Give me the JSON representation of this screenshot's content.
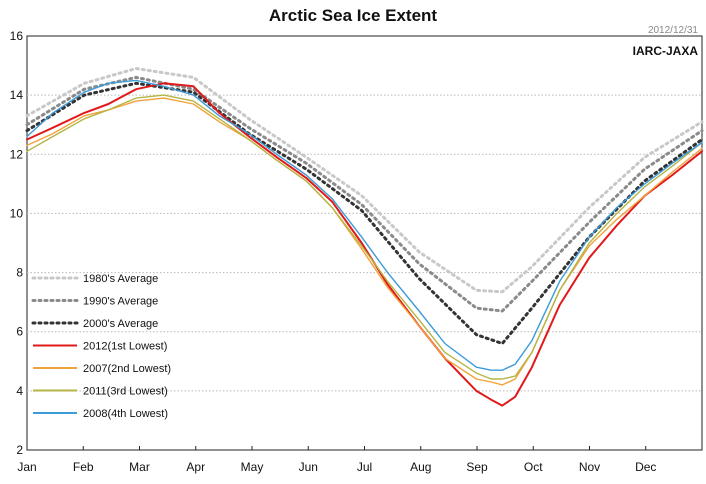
{
  "chart_data": {
    "type": "line",
    "title": "Arctic Sea Ice Extent",
    "date_stamp": "2012/12/31",
    "source": "IARC-JAXA",
    "xlabel": "",
    "ylabel": "",
    "x_ticks": [
      "Jan",
      "Feb",
      "Mar",
      "Apr",
      "May",
      "Jun",
      "Jul",
      "Aug",
      "Sep",
      "Oct",
      "Nov",
      "Dec"
    ],
    "ylim": [
      2,
      16
    ],
    "y_ticks": [
      2,
      4,
      6,
      8,
      10,
      12,
      14,
      16
    ],
    "xlim": [
      1,
      366
    ],
    "grid": "horizontal",
    "legend_position": "left",
    "series": [
      {
        "name": "1980's Average",
        "color": "#c8c8c8",
        "style": "dotted",
        "x": [
          1,
          32,
          60,
          91,
          121,
          152,
          182,
          213,
          244,
          258,
          274,
          305,
          335,
          366
        ],
        "y": [
          13.3,
          14.4,
          14.9,
          14.6,
          13.2,
          11.9,
          10.6,
          8.7,
          7.4,
          7.35,
          8.2,
          10.2,
          11.9,
          13.1
        ]
      },
      {
        "name": "1990's Average",
        "color": "#8a8a8a",
        "style": "dotted",
        "x": [
          1,
          32,
          60,
          91,
          121,
          152,
          182,
          213,
          244,
          258,
          274,
          305,
          335,
          366
        ],
        "y": [
          13.0,
          14.2,
          14.6,
          14.2,
          12.9,
          11.7,
          10.3,
          8.3,
          6.8,
          6.7,
          7.7,
          9.7,
          11.5,
          12.8
        ]
      },
      {
        "name": "2000's Average",
        "color": "#333333",
        "style": "dotted",
        "x": [
          1,
          32,
          60,
          91,
          121,
          152,
          182,
          213,
          244,
          258,
          274,
          305,
          335,
          366
        ],
        "y": [
          12.8,
          14.0,
          14.4,
          14.1,
          12.7,
          11.5,
          10.1,
          7.8,
          5.9,
          5.6,
          6.8,
          9.2,
          11.1,
          12.5
        ]
      },
      {
        "name": "2012(1st Lowest)",
        "color": "#e0191b",
        "style": "solid",
        "x": [
          1,
          15,
          32,
          45,
          60,
          75,
          91,
          105,
          121,
          136,
          152,
          166,
          182,
          196,
          213,
          227,
          244,
          252,
          258,
          265,
          274,
          289,
          305,
          320,
          335,
          350,
          366
        ],
        "y": [
          12.5,
          12.9,
          13.4,
          13.7,
          14.2,
          14.4,
          14.3,
          13.4,
          12.6,
          11.9,
          11.2,
          10.4,
          9.0,
          7.6,
          6.2,
          5.1,
          4.0,
          3.7,
          3.5,
          3.8,
          4.8,
          6.9,
          8.5,
          9.6,
          10.6,
          11.3,
          12.1
        ]
      },
      {
        "name": "2007(2nd Lowest)",
        "color": "#f2a23a",
        "style": "solid",
        "x": [
          1,
          15,
          32,
          45,
          60,
          75,
          91,
          105,
          121,
          136,
          152,
          166,
          182,
          196,
          213,
          227,
          244,
          252,
          258,
          265,
          274,
          289,
          305,
          320,
          335,
          350,
          366
        ],
        "y": [
          12.3,
          12.7,
          13.3,
          13.5,
          13.8,
          13.9,
          13.7,
          13.1,
          12.5,
          11.8,
          11.1,
          10.2,
          8.8,
          7.5,
          6.2,
          5.1,
          4.4,
          4.3,
          4.2,
          4.4,
          5.3,
          7.4,
          8.9,
          9.8,
          10.6,
          11.4,
          12.2
        ]
      },
      {
        "name": "2011(3rd Lowest)",
        "color": "#b5b545",
        "style": "solid",
        "x": [
          1,
          15,
          32,
          45,
          60,
          75,
          91,
          105,
          121,
          136,
          152,
          166,
          182,
          196,
          213,
          227,
          244,
          252,
          258,
          265,
          274,
          289,
          305,
          320,
          335,
          350,
          366
        ],
        "y": [
          12.1,
          12.6,
          13.2,
          13.5,
          13.9,
          14.0,
          13.8,
          13.2,
          12.5,
          11.8,
          11.1,
          10.2,
          8.9,
          7.7,
          6.4,
          5.3,
          4.6,
          4.4,
          4.4,
          4.5,
          5.3,
          7.4,
          9.0,
          10.0,
          10.9,
          11.6,
          12.4
        ]
      },
      {
        "name": "2008(4th Lowest)",
        "color": "#3d9bd8",
        "style": "solid",
        "x": [
          1,
          15,
          32,
          45,
          60,
          75,
          91,
          105,
          121,
          136,
          152,
          166,
          182,
          196,
          213,
          227,
          244,
          252,
          258,
          265,
          274,
          289,
          305,
          320,
          335,
          350,
          366
        ],
        "y": [
          12.6,
          13.4,
          14.1,
          14.4,
          14.5,
          14.3,
          14.0,
          13.3,
          12.7,
          12.0,
          11.3,
          10.5,
          9.2,
          8.0,
          6.7,
          5.6,
          4.8,
          4.7,
          4.7,
          4.9,
          5.7,
          7.7,
          9.2,
          10.2,
          11.0,
          11.7,
          12.4
        ]
      }
    ]
  }
}
